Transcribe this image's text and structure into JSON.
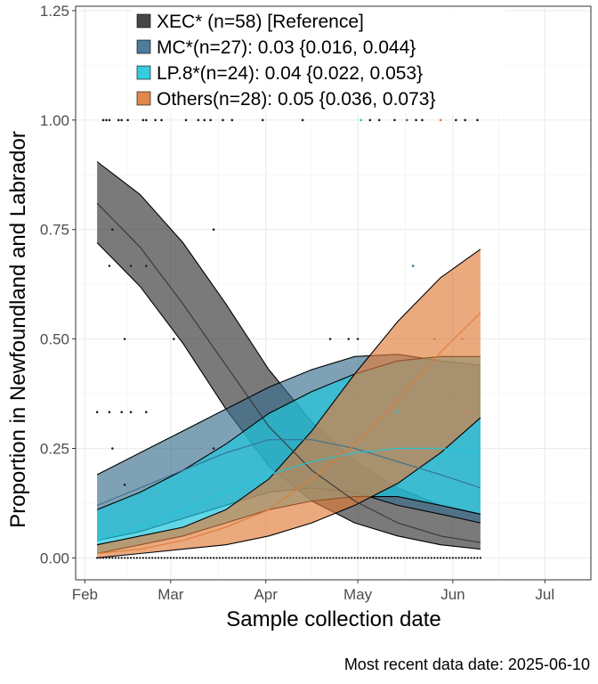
{
  "chart_data": {
    "type": "area",
    "xlabel": "Sample collection date",
    "ylabel": "Proportion in Newfoundland and Labrador",
    "caption": "Most recent data date: 2025-06-10",
    "x_range": [
      "2025-01-29",
      "2025-07-16"
    ],
    "ylim": [
      -0.05,
      1.26
    ],
    "x_ticks": [
      {
        "label": "Feb",
        "date": "2025-02-01"
      },
      {
        "label": "Mar",
        "date": "2025-03-01"
      },
      {
        "label": "Apr",
        "date": "2025-04-01"
      },
      {
        "label": "May",
        "date": "2025-05-01"
      },
      {
        "label": "Jun",
        "date": "2025-06-01"
      },
      {
        "label": "Jul",
        "date": "2025-07-01"
      }
    ],
    "y_ticks": [
      {
        "label": "0.00",
        "value": 0
      },
      {
        "label": "0.25",
        "value": 0.25
      },
      {
        "label": "0.50",
        "value": 0.5
      },
      {
        "label": "0.75",
        "value": 0.75
      },
      {
        "label": "1.00",
        "value": 1.0
      },
      {
        "label": "1.25",
        "value": 1.25
      }
    ],
    "grid": true,
    "legend_position": "top-left",
    "series": [
      {
        "name": "XEC* (n=58)  [Reference]",
        "color": "#333333",
        "fill_opacity": 0.65,
        "x": [
          "2025-02-05",
          "2025-02-19",
          "2025-03-05",
          "2025-03-19",
          "2025-04-02",
          "2025-04-16",
          "2025-04-30",
          "2025-05-14",
          "2025-05-28",
          "2025-06-10"
        ],
        "mid": [
          0.81,
          0.71,
          0.58,
          0.44,
          0.3,
          0.2,
          0.13,
          0.08,
          0.05,
          0.035
        ],
        "lower": [
          0.72,
          0.62,
          0.49,
          0.34,
          0.21,
          0.13,
          0.08,
          0.05,
          0.03,
          0.02
        ],
        "upper": [
          0.905,
          0.83,
          0.72,
          0.58,
          0.43,
          0.31,
          0.22,
          0.16,
          0.12,
          0.1
        ],
        "points": [
          {
            "x": "2025-02-07",
            "y": 1.0
          },
          {
            "x": "2025-02-08",
            "y": 1.0
          },
          {
            "x": "2025-02-09",
            "y": 1.0
          },
          {
            "x": "2025-02-12",
            "y": 1.0
          },
          {
            "x": "2025-02-13",
            "y": 1.0
          },
          {
            "x": "2025-02-15",
            "y": 1.0
          },
          {
            "x": "2025-02-20",
            "y": 1.0
          },
          {
            "x": "2025-02-21",
            "y": 1.0
          },
          {
            "x": "2025-02-24",
            "y": 1.0
          },
          {
            "x": "2025-02-26",
            "y": 1.0
          },
          {
            "x": "2025-03-06",
            "y": 1.0
          },
          {
            "x": "2025-03-10",
            "y": 1.0
          },
          {
            "x": "2025-03-12",
            "y": 1.0
          },
          {
            "x": "2025-03-14",
            "y": 1.0
          },
          {
            "x": "2025-03-18",
            "y": 1.0
          },
          {
            "x": "2025-03-21",
            "y": 1.0
          },
          {
            "x": "2025-03-31",
            "y": 1.0
          },
          {
            "x": "2025-04-13",
            "y": 1.0
          },
          {
            "x": "2025-05-05",
            "y": 1.0
          },
          {
            "x": "2025-05-08",
            "y": 1.0
          },
          {
            "x": "2025-05-13",
            "y": 1.0
          },
          {
            "x": "2025-05-20",
            "y": 1.0
          },
          {
            "x": "2025-05-22",
            "y": 1.0
          },
          {
            "x": "2025-06-02",
            "y": 1.0
          },
          {
            "x": "2025-06-05",
            "y": 1.0
          },
          {
            "x": "2025-06-09",
            "y": 1.0
          },
          {
            "x": "2025-02-10",
            "y": 0.75
          },
          {
            "x": "2025-03-15",
            "y": 0.75
          },
          {
            "x": "2025-02-09",
            "y": 0.667
          },
          {
            "x": "2025-02-16",
            "y": 0.667
          },
          {
            "x": "2025-02-21",
            "y": 0.667
          },
          {
            "x": "2025-02-14",
            "y": 0.5
          },
          {
            "x": "2025-03-02",
            "y": 0.5
          },
          {
            "x": "2025-04-22",
            "y": 0.5
          },
          {
            "x": "2025-04-28",
            "y": 0.5
          },
          {
            "x": "2025-05-01",
            "y": 0.5
          },
          {
            "x": "2025-02-05",
            "y": 0.333
          },
          {
            "x": "2025-02-09",
            "y": 0.333
          },
          {
            "x": "2025-02-13",
            "y": 0.333
          },
          {
            "x": "2025-02-16",
            "y": 0.333
          },
          {
            "x": "2025-02-21",
            "y": 0.333
          },
          {
            "x": "2025-02-10",
            "y": 0.25
          },
          {
            "x": "2025-03-15",
            "y": 0.25
          },
          {
            "x": "2025-02-14",
            "y": 0.167
          }
        ]
      },
      {
        "name": "MC*(n=27): 0.03 {0.016, 0.044}",
        "color": "#3b6e8f",
        "fill_opacity": 0.65,
        "x": [
          "2025-02-05",
          "2025-02-19",
          "2025-03-05",
          "2025-03-19",
          "2025-04-02",
          "2025-04-16",
          "2025-04-30",
          "2025-05-14",
          "2025-05-28",
          "2025-06-10"
        ],
        "mid": [
          0.12,
          0.16,
          0.2,
          0.24,
          0.27,
          0.27,
          0.25,
          0.22,
          0.19,
          0.16
        ],
        "lower": [
          0.04,
          0.06,
          0.09,
          0.12,
          0.15,
          0.16,
          0.15,
          0.12,
          0.1,
          0.08
        ],
        "upper": [
          0.19,
          0.24,
          0.29,
          0.34,
          0.39,
          0.43,
          0.46,
          0.465,
          0.45,
          0.44
        ],
        "points": [
          {
            "x": "2025-05-17",
            "y": 1.0
          },
          {
            "x": "2025-05-19",
            "y": 0.667
          }
        ]
      },
      {
        "name": "LP.8*(n=24): 0.04 {0.022, 0.053}",
        "color": "#1fc6dd",
        "fill_opacity": 0.7,
        "x": [
          "2025-02-05",
          "2025-02-19",
          "2025-03-05",
          "2025-03-19",
          "2025-04-02",
          "2025-04-16",
          "2025-04-30",
          "2025-05-14",
          "2025-05-28",
          "2025-06-10"
        ],
        "mid": [
          0.04,
          0.07,
          0.11,
          0.15,
          0.19,
          0.22,
          0.24,
          0.25,
          0.25,
          0.24
        ],
        "lower": [
          0.01,
          0.03,
          0.05,
          0.08,
          0.11,
          0.13,
          0.14,
          0.14,
          0.12,
          0.1
        ],
        "upper": [
          0.11,
          0.15,
          0.2,
          0.26,
          0.33,
          0.38,
          0.42,
          0.45,
          0.46,
          0.46
        ],
        "points": [
          {
            "x": "2025-05-02",
            "y": 1.0
          },
          {
            "x": "2025-05-14",
            "y": 0.333
          }
        ]
      },
      {
        "name": "Others(n=28): 0.05 {0.036, 0.073}",
        "color": "#e07b39",
        "fill_opacity": 0.65,
        "x": [
          "2025-02-05",
          "2025-02-19",
          "2025-03-05",
          "2025-03-19",
          "2025-04-02",
          "2025-04-16",
          "2025-04-30",
          "2025-05-14",
          "2025-05-28",
          "2025-06-10"
        ],
        "mid": [
          0.01,
          0.02,
          0.04,
          0.07,
          0.11,
          0.18,
          0.26,
          0.36,
          0.47,
          0.56
        ],
        "lower": [
          0.0,
          0.01,
          0.02,
          0.03,
          0.05,
          0.08,
          0.12,
          0.17,
          0.24,
          0.32
        ],
        "upper": [
          0.03,
          0.05,
          0.07,
          0.11,
          0.18,
          0.29,
          0.42,
          0.54,
          0.64,
          0.705
        ],
        "points": [
          {
            "x": "2025-05-28",
            "y": 1.0
          },
          {
            "x": "2025-06-04",
            "y": 0.5
          },
          {
            "x": "2025-05-26",
            "y": 0.5
          },
          {
            "x": "2025-06-06",
            "y": 0.333
          }
        ]
      }
    ]
  }
}
